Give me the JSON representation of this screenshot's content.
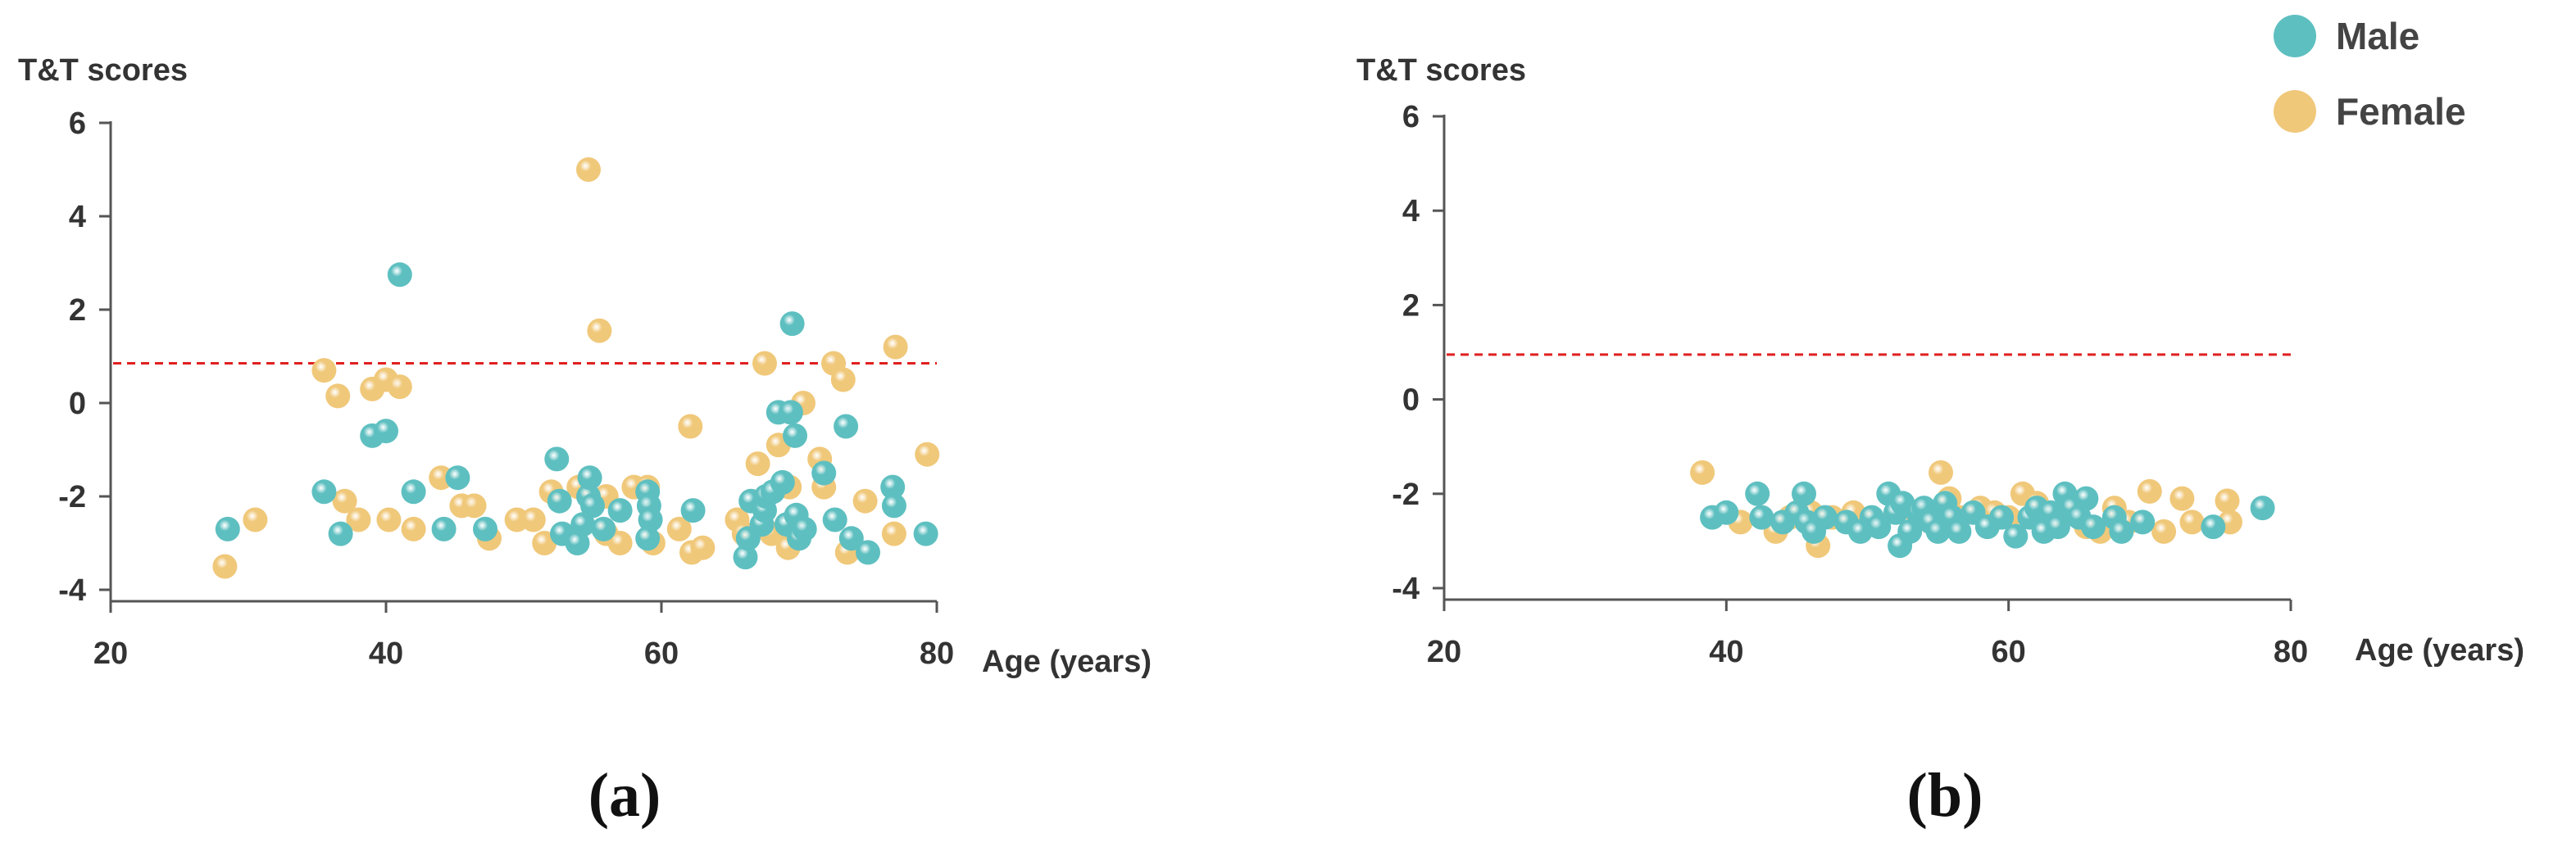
{
  "colors": {
    "male": "#5ebfc0",
    "female": "#f0c87a",
    "threshold": "#e02020",
    "axis": "#555555"
  },
  "legend": {
    "male_label": "Male",
    "female_label": "Female"
  },
  "chart_data": [
    {
      "type": "scatter",
      "panel_label": "(a)",
      "ylabel": "T&T scores",
      "xlabel": "Age (years)",
      "xlim": [
        20,
        80
      ],
      "ylim": [
        -4,
        6
      ],
      "xticks": [
        20,
        40,
        60,
        80
      ],
      "yticks": [
        -4,
        -2,
        0,
        2,
        4,
        6
      ],
      "threshold": 0.85,
      "series": [
        {
          "name": "Male",
          "color": "#5ebfc0",
          "points": [
            [
              28.5,
              -2.7
            ],
            [
              35.5,
              -1.9
            ],
            [
              36.7,
              -2.8
            ],
            [
              39,
              -0.7
            ],
            [
              40,
              -0.6
            ],
            [
              41,
              2.75
            ],
            [
              42,
              -1.9
            ],
            [
              44.2,
              -2.7
            ],
            [
              45.2,
              -1.6
            ],
            [
              47.2,
              -2.7
            ],
            [
              52.4,
              -1.2
            ],
            [
              52.6,
              -2.1
            ],
            [
              52.8,
              -2.8
            ],
            [
              53.9,
              -3.0
            ],
            [
              54.3,
              -2.6
            ],
            [
              54.7,
              -2.0
            ],
            [
              54.8,
              -1.6
            ],
            [
              55,
              -2.2
            ],
            [
              55.8,
              -2.7
            ],
            [
              57,
              -2.3
            ],
            [
              59,
              -1.9
            ],
            [
              59.1,
              -2.2
            ],
            [
              59.2,
              -2.5
            ],
            [
              59,
              -2.9
            ],
            [
              62.3,
              -2.3
            ],
            [
              66.1,
              -3.3
            ],
            [
              66.3,
              -2.9
            ],
            [
              66.5,
              -2.1
            ],
            [
              67.3,
              -2.6
            ],
            [
              67.5,
              -2.3
            ],
            [
              67.6,
              -2.0
            ],
            [
              68.1,
              -1.9
            ],
            [
              68.5,
              -0.2
            ],
            [
              68.8,
              -1.7
            ],
            [
              69.1,
              -2.6
            ],
            [
              69.4,
              -0.2
            ],
            [
              69.5,
              1.7
            ],
            [
              69.7,
              -0.7
            ],
            [
              69.8,
              -2.4
            ],
            [
              70,
              -2.9
            ],
            [
              70.4,
              -2.7
            ],
            [
              71.8,
              -1.5
            ],
            [
              72.6,
              -2.5
            ],
            [
              73.4,
              -0.5
            ],
            [
              73.8,
              -2.9
            ],
            [
              75,
              -3.2
            ],
            [
              76.8,
              -1.8
            ],
            [
              76.9,
              -2.2
            ],
            [
              79.2,
              -2.8
            ]
          ]
        },
        {
          "name": "Female",
          "color": "#f0c87a",
          "points": [
            [
              28.3,
              -3.5
            ],
            [
              30.5,
              -2.5
            ],
            [
              35.5,
              0.7
            ],
            [
              36.5,
              0.15
            ],
            [
              37,
              -2.1
            ],
            [
              38,
              -2.5
            ],
            [
              39,
              0.3
            ],
            [
              40,
              0.5
            ],
            [
              40.2,
              -2.5
            ],
            [
              41,
              0.35
            ],
            [
              42,
              -2.7
            ],
            [
              44,
              -1.6
            ],
            [
              45.5,
              -2.2
            ],
            [
              46.4,
              -2.2
            ],
            [
              47.5,
              -2.9
            ],
            [
              49.5,
              -2.5
            ],
            [
              50.7,
              -2.5
            ],
            [
              51.5,
              -3.0
            ],
            [
              52,
              -1.9
            ],
            [
              54,
              -1.8
            ],
            [
              54.7,
              5.0
            ],
            [
              55.5,
              1.55
            ],
            [
              56,
              -2.0
            ],
            [
              56,
              -2.8
            ],
            [
              57,
              -3.0
            ],
            [
              58,
              -1.8
            ],
            [
              59,
              -1.8
            ],
            [
              59.4,
              -3.0
            ],
            [
              61.3,
              -2.7
            ],
            [
              62.1,
              -0.5
            ],
            [
              62.2,
              -3.2
            ],
            [
              63,
              -3.1
            ],
            [
              65.5,
              -2.5
            ],
            [
              66,
              -2.8
            ],
            [
              67,
              -1.3
            ],
            [
              67.5,
              0.85
            ],
            [
              68,
              -2.8
            ],
            [
              68.5,
              -0.9
            ],
            [
              69.2,
              -3.1
            ],
            [
              69.3,
              -1.8
            ],
            [
              70.3,
              0.0
            ],
            [
              71.5,
              -1.2
            ],
            [
              71.8,
              -1.8
            ],
            [
              72.5,
              0.85
            ],
            [
              73.2,
              0.5
            ],
            [
              73.5,
              -3.2
            ],
            [
              74.8,
              -2.1
            ],
            [
              76.9,
              -2.8
            ],
            [
              77,
              1.2
            ],
            [
              79.3,
              -1.1
            ]
          ]
        }
      ]
    },
    {
      "type": "scatter",
      "panel_label": "(b)",
      "ylabel": "T&T scores",
      "xlabel": "Age (years)",
      "xlim": [
        20,
        80
      ],
      "ylim": [
        -4,
        6
      ],
      "xticks": [
        20,
        40,
        60,
        80
      ],
      "yticks": [
        -4,
        -2,
        0,
        2,
        4,
        6
      ],
      "threshold": 0.95,
      "series": [
        {
          "name": "Male",
          "color": "#5ebfc0",
          "points": [
            [
              39,
              -2.5
            ],
            [
              40,
              -2.4
            ],
            [
              42.2,
              -2.0
            ],
            [
              42.5,
              -2.5
            ],
            [
              44,
              -2.6
            ],
            [
              45,
              -2.4
            ],
            [
              45.5,
              -2.0
            ],
            [
              45.7,
              -2.6
            ],
            [
              46.2,
              -2.8
            ],
            [
              47,
              -2.5
            ],
            [
              48.5,
              -2.6
            ],
            [
              49.5,
              -2.8
            ],
            [
              50.3,
              -2.5
            ],
            [
              50.8,
              -2.7
            ],
            [
              51.5,
              -2.0
            ],
            [
              52,
              -2.4
            ],
            [
              52.3,
              -3.1
            ],
            [
              52.5,
              -2.2
            ],
            [
              53,
              -2.8
            ],
            [
              53.6,
              -2.4
            ],
            [
              54,
              -2.3
            ],
            [
              54.5,
              -2.6
            ],
            [
              55,
              -2.8
            ],
            [
              55.5,
              -2.2
            ],
            [
              56,
              -2.5
            ],
            [
              56.5,
              -2.8
            ],
            [
              57.5,
              -2.4
            ],
            [
              58.5,
              -2.7
            ],
            [
              59.5,
              -2.5
            ],
            [
              60.5,
              -2.9
            ],
            [
              61.5,
              -2.5
            ],
            [
              62,
              -2.3
            ],
            [
              62.5,
              -2.8
            ],
            [
              63,
              -2.4
            ],
            [
              63.5,
              -2.7
            ],
            [
              64,
              -2.0
            ],
            [
              64.5,
              -2.3
            ],
            [
              65,
              -2.5
            ],
            [
              65.5,
              -2.1
            ],
            [
              66,
              -2.7
            ],
            [
              67.5,
              -2.5
            ],
            [
              68,
              -2.8
            ],
            [
              69.5,
              -2.6
            ],
            [
              74.5,
              -2.7
            ],
            [
              78,
              -2.3
            ]
          ]
        },
        {
          "name": "Female",
          "color": "#f0c87a",
          "points": [
            [
              38.3,
              -1.55
            ],
            [
              41,
              -2.6
            ],
            [
              43.5,
              -2.8
            ],
            [
              44.5,
              -2.5
            ],
            [
              46,
              -2.4
            ],
            [
              46.5,
              -3.1
            ],
            [
              47.5,
              -2.5
            ],
            [
              49,
              -2.4
            ],
            [
              50.5,
              -2.6
            ],
            [
              53.5,
              -2.4
            ],
            [
              54.5,
              -2.6
            ],
            [
              55.2,
              -1.55
            ],
            [
              55.8,
              -2.1
            ],
            [
              56.5,
              -2.5
            ],
            [
              58,
              -2.3
            ],
            [
              59,
              -2.4
            ],
            [
              60,
              -2.5
            ],
            [
              61,
              -2.0
            ],
            [
              62,
              -2.2
            ],
            [
              63.5,
              -2.6
            ],
            [
              64,
              -2.4
            ],
            [
              65.5,
              -2.7
            ],
            [
              66.5,
              -2.8
            ],
            [
              67.5,
              -2.3
            ],
            [
              68.5,
              -2.6
            ],
            [
              70,
              -1.95
            ],
            [
              71,
              -2.8
            ],
            [
              72.3,
              -2.1
            ],
            [
              73,
              -2.6
            ],
            [
              75.5,
              -2.15
            ],
            [
              75.7,
              -2.6
            ]
          ]
        }
      ]
    }
  ]
}
